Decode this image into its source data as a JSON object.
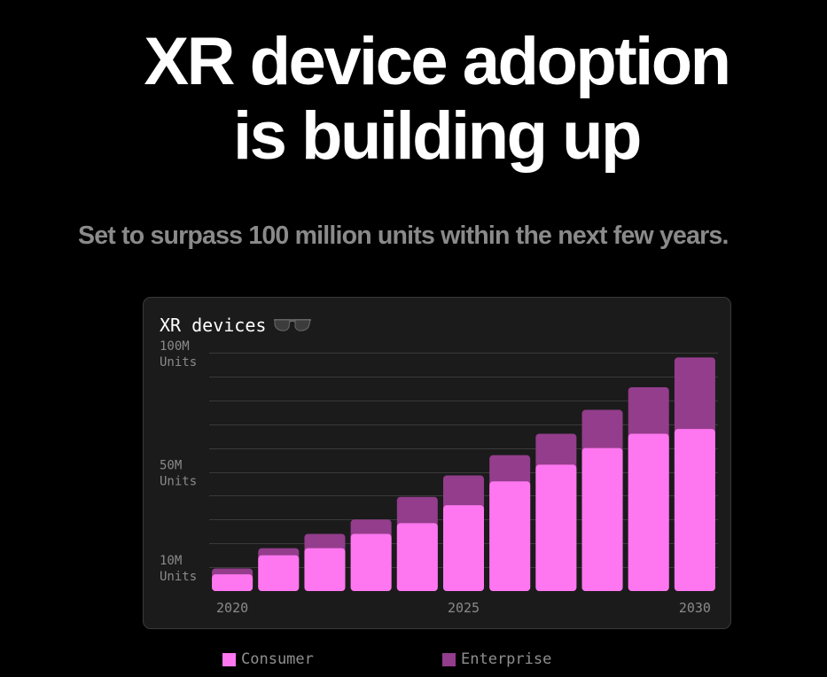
{
  "headline": {
    "line1": "XR device adoption",
    "line2": "is building up"
  },
  "subtitle": "Set to surpass 100 million units within the next few years.",
  "card": {
    "title": "XR devices",
    "title_icon": "sunglasses-icon"
  },
  "chart_data": {
    "type": "bar",
    "stacked": true,
    "title": "XR devices",
    "categories": [
      2020,
      2021,
      2022,
      2023,
      2024,
      2025,
      2026,
      2027,
      2028,
      2029,
      2030
    ],
    "series": [
      {
        "name": "Consumer",
        "color": "#ff77f0",
        "values": [
          7,
          15,
          18,
          24,
          28.5,
          36,
          46,
          53,
          60,
          66,
          68
        ]
      },
      {
        "name": "Enterprise",
        "color": "#933d8c",
        "values": [
          2.5,
          3,
          6,
          6,
          11,
          12.5,
          11,
          13,
          16,
          19.5,
          30
        ]
      }
    ],
    "ylim": [
      0,
      100
    ],
    "y_ticks": [
      {
        "value": 100,
        "label": "100M",
        "sublabel": "Units"
      },
      {
        "value": 50,
        "label": "50M",
        "sublabel": "Units"
      },
      {
        "value": 10,
        "label": "10M",
        "sublabel": "Units"
      }
    ],
    "gridlines": [
      10,
      20,
      30,
      40,
      50,
      60,
      70,
      80,
      90,
      100
    ],
    "x_ticks": [
      {
        "value": 2020,
        "label": "2020"
      },
      {
        "value": 2025,
        "label": "2025"
      },
      {
        "value": 2030,
        "label": "2030"
      }
    ],
    "grid": true,
    "legend_position": "bottom"
  },
  "legend": [
    {
      "label": "Consumer",
      "color": "#ff77f0"
    },
    {
      "label": "Enterprise",
      "color": "#933d8c"
    }
  ]
}
